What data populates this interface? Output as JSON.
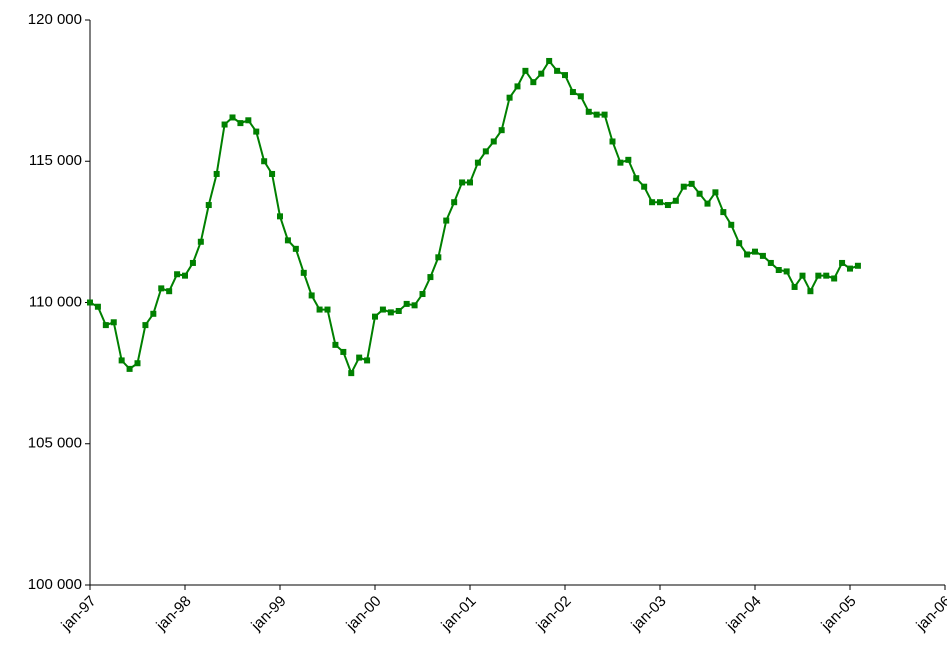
{
  "chart_data": {
    "type": "line",
    "categories": [
      "jan-97",
      null,
      null,
      null,
      null,
      null,
      null,
      null,
      null,
      null,
      null,
      null,
      "jan-98",
      null,
      null,
      null,
      null,
      null,
      null,
      null,
      null,
      null,
      null,
      null,
      "jan-99",
      null,
      null,
      null,
      null,
      null,
      null,
      null,
      null,
      null,
      null,
      null,
      "jan-00",
      null,
      null,
      null,
      null,
      null,
      null,
      null,
      null,
      null,
      null,
      null,
      "jan-01",
      null,
      null,
      null,
      null,
      null,
      null,
      null,
      null,
      null,
      null,
      null,
      "jan-02",
      null,
      null,
      null,
      null,
      null,
      null,
      null,
      null,
      null,
      null,
      null,
      "jan-03",
      null,
      null,
      null,
      null,
      null,
      null,
      null,
      null,
      null,
      null,
      null,
      "jan-04",
      null,
      null,
      null,
      null,
      null,
      null,
      null,
      null,
      null,
      null,
      null,
      "jan-05",
      null,
      null,
      null,
      null,
      null,
      null,
      null,
      null,
      null,
      null,
      null,
      "jan-06"
    ],
    "series": [
      {
        "color": "#008000",
        "values": [
          110000,
          109850,
          109200,
          109300,
          107950,
          107650,
          107850,
          109200,
          109600,
          110500,
          110400,
          111000,
          110950,
          111400,
          112150,
          113450,
          114550,
          116300,
          116550,
          116350,
          116450,
          116050,
          115000,
          114550,
          113050,
          112200,
          111900,
          111050,
          110250,
          109750,
          109750,
          108500,
          108250,
          107500,
          108050,
          107950,
          109500,
          109750,
          109650,
          109700,
          109950,
          109900,
          110300,
          110900,
          111600,
          112900,
          113550,
          114250,
          114250,
          114950,
          115350,
          115700,
          116100,
          117250,
          117650,
          118200,
          117800,
          118100,
          118550,
          118200,
          118050,
          117450,
          117300,
          116750,
          116650,
          116650,
          115700,
          114950,
          115050,
          114400,
          114100,
          113550,
          113550,
          113450,
          113600,
          114100,
          114200,
          113850,
          113500,
          113900,
          113200,
          112750,
          112100,
          111700,
          111800,
          111650,
          111400,
          111150,
          111100,
          110550,
          110950,
          110400,
          110950,
          110950,
          110850,
          111400,
          111200,
          111300,
          null,
          null,
          null,
          null,
          null,
          null,
          null,
          null,
          null,
          null,
          null
        ]
      }
    ],
    "ylim": [
      100000,
      120000
    ],
    "yticks": [
      {
        "value": 100000,
        "label": "100 000"
      },
      {
        "value": 105000,
        "label": "105 000"
      },
      {
        "value": 110000,
        "label": "110 000"
      },
      {
        "value": 115000,
        "label": "115 000"
      },
      {
        "value": 120000,
        "label": "120 000"
      }
    ],
    "grid": false
  }
}
